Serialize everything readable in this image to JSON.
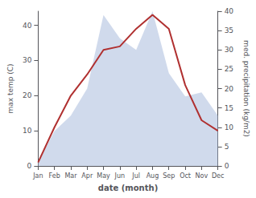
{
  "chart_data": {
    "type": "line",
    "xlabel": "date (month)",
    "ylabel": "max temp (C)",
    "y2label": "med. precipitation (kg/m2)",
    "categories": [
      "Jan",
      "Feb",
      "Mar",
      "Apr",
      "May",
      "Jun",
      "Jul",
      "Aug",
      "Sep",
      "Oct",
      "Nov",
      "Dec"
    ],
    "series": [
      {
        "type": "line",
        "color": "#b03030",
        "values": [
          1,
          11,
          20,
          26,
          33,
          34,
          39,
          43,
          39,
          23,
          13,
          10
        ]
      },
      {
        "type": "area",
        "color": "#aabbdd",
        "axis": "y2",
        "values": [
          1,
          9,
          13,
          20,
          39,
          33,
          30,
          40,
          24,
          18,
          19,
          13
        ]
      }
    ],
    "ylim": [
      0,
      44
    ],
    "yticks": [
      0,
      10,
      20,
      30,
      40
    ],
    "y2lim": [
      0,
      40
    ],
    "y2ticks": [
      0,
      5,
      10,
      15,
      20,
      25,
      30,
      35,
      40
    ],
    "grid": false
  }
}
